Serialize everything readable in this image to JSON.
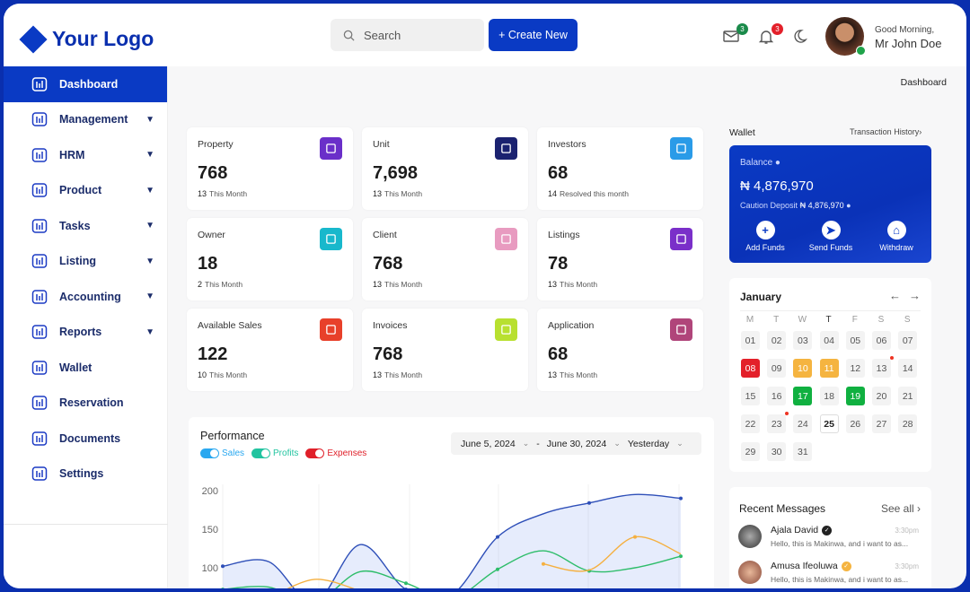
{
  "brand": {
    "logo_text": "Your Logo",
    "accent": "#0a3ac4"
  },
  "header": {
    "search_placeholder": "Search",
    "create_label": "+ Create New",
    "mail_count": "3",
    "notif_count": "3",
    "greeting": "Good Morning,",
    "user_name": "Mr John Doe",
    "breadcrumb": "Dashboard"
  },
  "sidebar": {
    "items": [
      {
        "label": "Dashboard",
        "icon": "dashboard-icon",
        "active": true
      },
      {
        "label": "Management",
        "icon": "management-icon",
        "expandable": true
      },
      {
        "label": "HRM",
        "icon": "users-icon",
        "expandable": true
      },
      {
        "label": "Product",
        "icon": "store-icon",
        "expandable": true
      },
      {
        "label": "Tasks",
        "icon": "briefcase-icon",
        "expandable": true
      },
      {
        "label": "Listing",
        "icon": "chart-bars-icon",
        "expandable": true
      },
      {
        "label": "Accounting",
        "icon": "calendar-edit-icon",
        "expandable": true
      },
      {
        "label": "Reports",
        "icon": "report-icon",
        "expandable": true
      },
      {
        "label": "Wallet",
        "icon": "wallet-icon"
      },
      {
        "label": "Reservation",
        "icon": "checklist-icon"
      },
      {
        "label": "Documents",
        "icon": "folder-icon"
      },
      {
        "label": "Settings",
        "icon": "gear-icon"
      }
    ]
  },
  "stats": [
    {
      "title": "Property",
      "value": "768",
      "count": "13",
      "note": "This Month",
      "color": "#6a2fc9",
      "icon": "building-icon"
    },
    {
      "title": "Unit",
      "value": "7,698",
      "count": "13",
      "note": "This Month",
      "color": "#1b2270",
      "icon": "home-icon"
    },
    {
      "title": "Investors",
      "value": "68",
      "count": "14",
      "note": "Resolved this month",
      "color": "#2a9be8",
      "icon": "document-check-icon"
    },
    {
      "title": "Owner",
      "value": "18",
      "count": "2",
      "note": "This Month",
      "color": "#18b8cc",
      "icon": "user-icon"
    },
    {
      "title": "Client",
      "value": "768",
      "count": "13",
      "note": "This Month",
      "color": "#e89bc0",
      "icon": "user-circle-icon"
    },
    {
      "title": "Listings",
      "value": "78",
      "count": "13",
      "note": "This Month",
      "color": "#7a2fc9",
      "icon": "list-icon"
    },
    {
      "title": "Available Sales",
      "value": "122",
      "count": "10",
      "note": "This Month",
      "color": "#e8402a",
      "icon": "cash-icon"
    },
    {
      "title": "Invoices",
      "value": "768",
      "count": "13",
      "note": "This Month",
      "color": "#b8e030",
      "icon": "file-icon"
    },
    {
      "title": "Application",
      "value": "68",
      "count": "13",
      "note": "This Month",
      "color": "#b0457a",
      "icon": "target-icon"
    }
  ],
  "performance": {
    "title": "Performance",
    "start_date": "June 5, 2024",
    "separator": "-",
    "end_date": "June 30, 2024",
    "range": "Yesterday"
  },
  "chart_data": {
    "type": "line",
    "yticks": [
      200,
      150,
      100
    ],
    "ylim": [
      50,
      215
    ],
    "grid": true,
    "legend": "top-left",
    "series": [
      {
        "name": "Sales",
        "color": "#2e4fb8",
        "legend_color": "#2aa8f0",
        "values": [
          102,
          108,
          55,
          130,
          72,
          65,
          140,
          170,
          184,
          195,
          190
        ]
      },
      {
        "name": "Profits",
        "color": "#2ebd6a",
        "legend_color": "#22c4a0",
        "values": [
          72,
          75,
          55,
          95,
          80,
          60,
          98,
          122,
          96,
          100,
          115
        ]
      },
      {
        "name": "Expenses",
        "color": "#f5b040",
        "legend_color": "#e0202a",
        "values": [
          null,
          60,
          85,
          70,
          null,
          null,
          null,
          105,
          97,
          140,
          118
        ]
      }
    ]
  },
  "wallet": {
    "title": "Wallet",
    "history_label": "Transaction History",
    "balance_label": "Balance",
    "balance": "₦ 4,876,970",
    "caution_label": "Caution Deposit",
    "caution_value": "₦ 4,876,970",
    "actions": [
      {
        "label": "Add Funds",
        "icon": "plus-icon"
      },
      {
        "label": "Send Funds",
        "icon": "send-icon"
      },
      {
        "label": "Withdraw",
        "icon": "bank-icon"
      }
    ]
  },
  "calendar": {
    "month": "January",
    "weekdays": [
      "M",
      "T",
      "W",
      "T",
      "F",
      "S",
      "S"
    ],
    "days": [
      "01",
      "02",
      "03",
      "04",
      "05",
      "06",
      "07",
      "08",
      "09",
      "10",
      "11",
      "12",
      "13",
      "14",
      "15",
      "16",
      "17",
      "18",
      "19",
      "20",
      "21",
      "22",
      "23",
      "24",
      "25",
      "26",
      "27",
      "28",
      "29",
      "30",
      "31"
    ],
    "highlights": {
      "08": "#e3202a",
      "10": "#f5b440",
      "11": "#f5b440",
      "17": "#10b040",
      "19": "#10b040"
    },
    "dots": [
      "13",
      "23"
    ],
    "today": "25"
  },
  "messages": {
    "title": "Recent Messages",
    "see_all": "See all",
    "items": [
      {
        "name": "Ajala David",
        "time": "3:30pm",
        "preview": "Hello, this is Makinwa, and i want to as...",
        "verified_color": "#222"
      },
      {
        "name": "Amusa Ifeoluwa",
        "time": "3:30pm",
        "preview": "Hello, this is Makinwa, and i want to as...",
        "verified_color": "#f5b440"
      }
    ]
  }
}
